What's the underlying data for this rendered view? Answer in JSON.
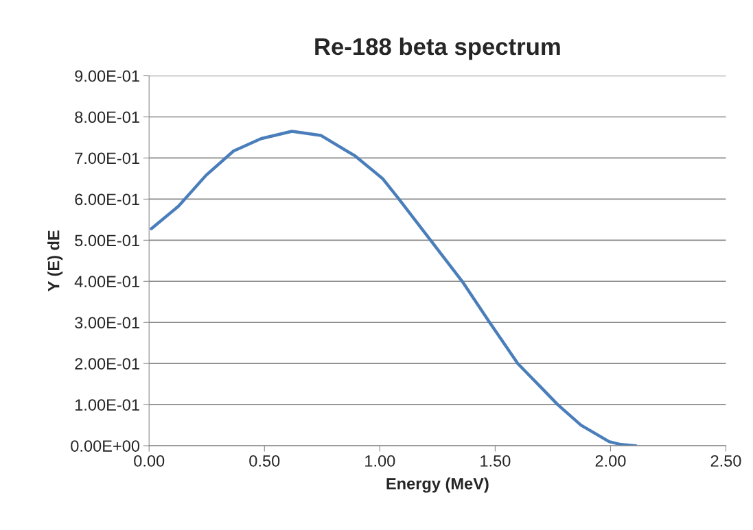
{
  "chart_data": {
    "type": "line",
    "title": "Re-188 beta spectrum",
    "xlabel": "Energy (MeV)",
    "ylabel": "Y (E) dE",
    "x": [
      0.01,
      0.128,
      0.247,
      0.366,
      0.485,
      0.619,
      0.744,
      0.893,
      1.012,
      1.083,
      1.22,
      1.357,
      1.476,
      1.598,
      1.702,
      1.771,
      1.872,
      1.994,
      2.045,
      2.11
    ],
    "series": [
      {
        "color": "#4a7ebb",
        "values": [
          0.528,
          0.583,
          0.658,
          0.717,
          0.747,
          0.765,
          0.755,
          0.705,
          0.65,
          0.6,
          0.5,
          0.4,
          0.3,
          0.2,
          0.14,
          0.1,
          0.05,
          0.01,
          0.003,
          0.0
        ]
      }
    ],
    "xlim": [
      0,
      2.5
    ],
    "ylim": [
      0,
      0.9
    ],
    "xticks": [
      {
        "value": 0,
        "label": "0.00"
      },
      {
        "value": 0.5,
        "label": "0.50"
      },
      {
        "value": 1,
        "label": "1.00"
      },
      {
        "value": 1.5,
        "label": "1.50"
      },
      {
        "value": 2,
        "label": "2.00"
      },
      {
        "value": 2.5,
        "label": "2.50"
      }
    ],
    "yticks": [
      {
        "value": 0,
        "label": "0.00E+00"
      },
      {
        "value": 0.1,
        "label": "1.00E-01"
      },
      {
        "value": 0.2,
        "label": "2.00E-01"
      },
      {
        "value": 0.3,
        "label": "3.00E-01"
      },
      {
        "value": 0.4,
        "label": "4.00E-01"
      },
      {
        "value": 0.5,
        "label": "5.00E-01"
      },
      {
        "value": 0.6,
        "label": "6.00E-01"
      },
      {
        "value": 0.7,
        "label": "7.00E-01"
      },
      {
        "value": 0.8,
        "label": "8.00E-01"
      },
      {
        "value": 0.9,
        "label": "9.00E-01"
      }
    ],
    "grid": "y",
    "marker": "none",
    "line_style": "solid"
  }
}
